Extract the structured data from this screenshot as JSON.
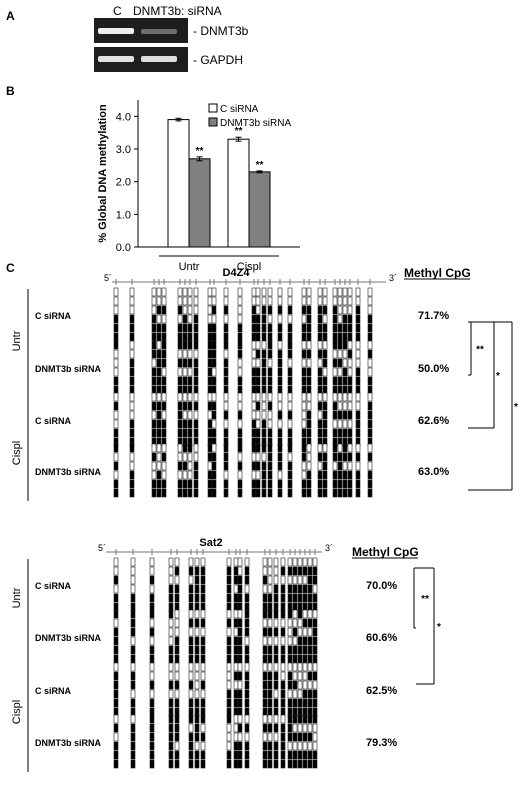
{
  "panel_a": {
    "label": "A",
    "lane_c": "C",
    "lane_si": "DNMT3b: siRNA",
    "band_1": "- DNMT3b",
    "band_2": "- GAPDH"
  },
  "panel_b": {
    "label": "B"
  },
  "chart_data": {
    "type": "bar",
    "title": "",
    "ylabel": "% Global DNA methylation",
    "xlabel": "",
    "categories": [
      "Untr",
      "Cispl"
    ],
    "series": [
      {
        "name": "C siRNA",
        "values": [
          3.9,
          3.3
        ],
        "errors": [
          0.04,
          0.06
        ],
        "color": "#ffffff"
      },
      {
        "name": "DNMT3b siRNA",
        "values": [
          2.7,
          2.3
        ],
        "errors": [
          0.06,
          0.03
        ],
        "color": "#808080"
      }
    ],
    "annotations": [
      {
        "series": 1,
        "category": 0,
        "text": "**"
      },
      {
        "series": 0,
        "category": 1,
        "text": "**"
      },
      {
        "series": 1,
        "category": 1,
        "text": "**"
      }
    ],
    "ylim": [
      0,
      4.5
    ],
    "yticks": [
      "0.0",
      "1.0",
      "2.0",
      "3.0",
      "4.0"
    ],
    "yticks_values": [
      0,
      1,
      2,
      3,
      4
    ],
    "legend_position": "top-right",
    "grid": false
  },
  "panel_c": {
    "label": "C",
    "header": "Methyl CpG",
    "blocks": [
      {
        "title": "D4Z4",
        "five": "5´",
        "three": "3´",
        "groups": [
          "Untr",
          "Cispl"
        ],
        "rows": [
          {
            "label": "C siRNA",
            "pct": "71.7%"
          },
          {
            "label": "DNMT3b siRNA",
            "pct": "50.0%"
          },
          {
            "label": "C siRNA",
            "pct": "62.6%"
          },
          {
            "label": "DNMT3b siRNA",
            "pct": "63.0%"
          }
        ],
        "sig": [
          "**",
          "*",
          "*"
        ]
      },
      {
        "title": "Sat2",
        "five": "5´",
        "three": "3´",
        "groups": [
          "Untr",
          "Cispl"
        ],
        "rows": [
          {
            "label": "C siRNA",
            "pct": "70.0%"
          },
          {
            "label": "DNMT3b siRNA",
            "pct": "60.6%"
          },
          {
            "label": "C siRNA",
            "pct": "62.5%"
          },
          {
            "label": "DNMT3b siRNA",
            "pct": "79.3%"
          }
        ],
        "sig": [
          "**",
          "*"
        ]
      }
    ]
  }
}
